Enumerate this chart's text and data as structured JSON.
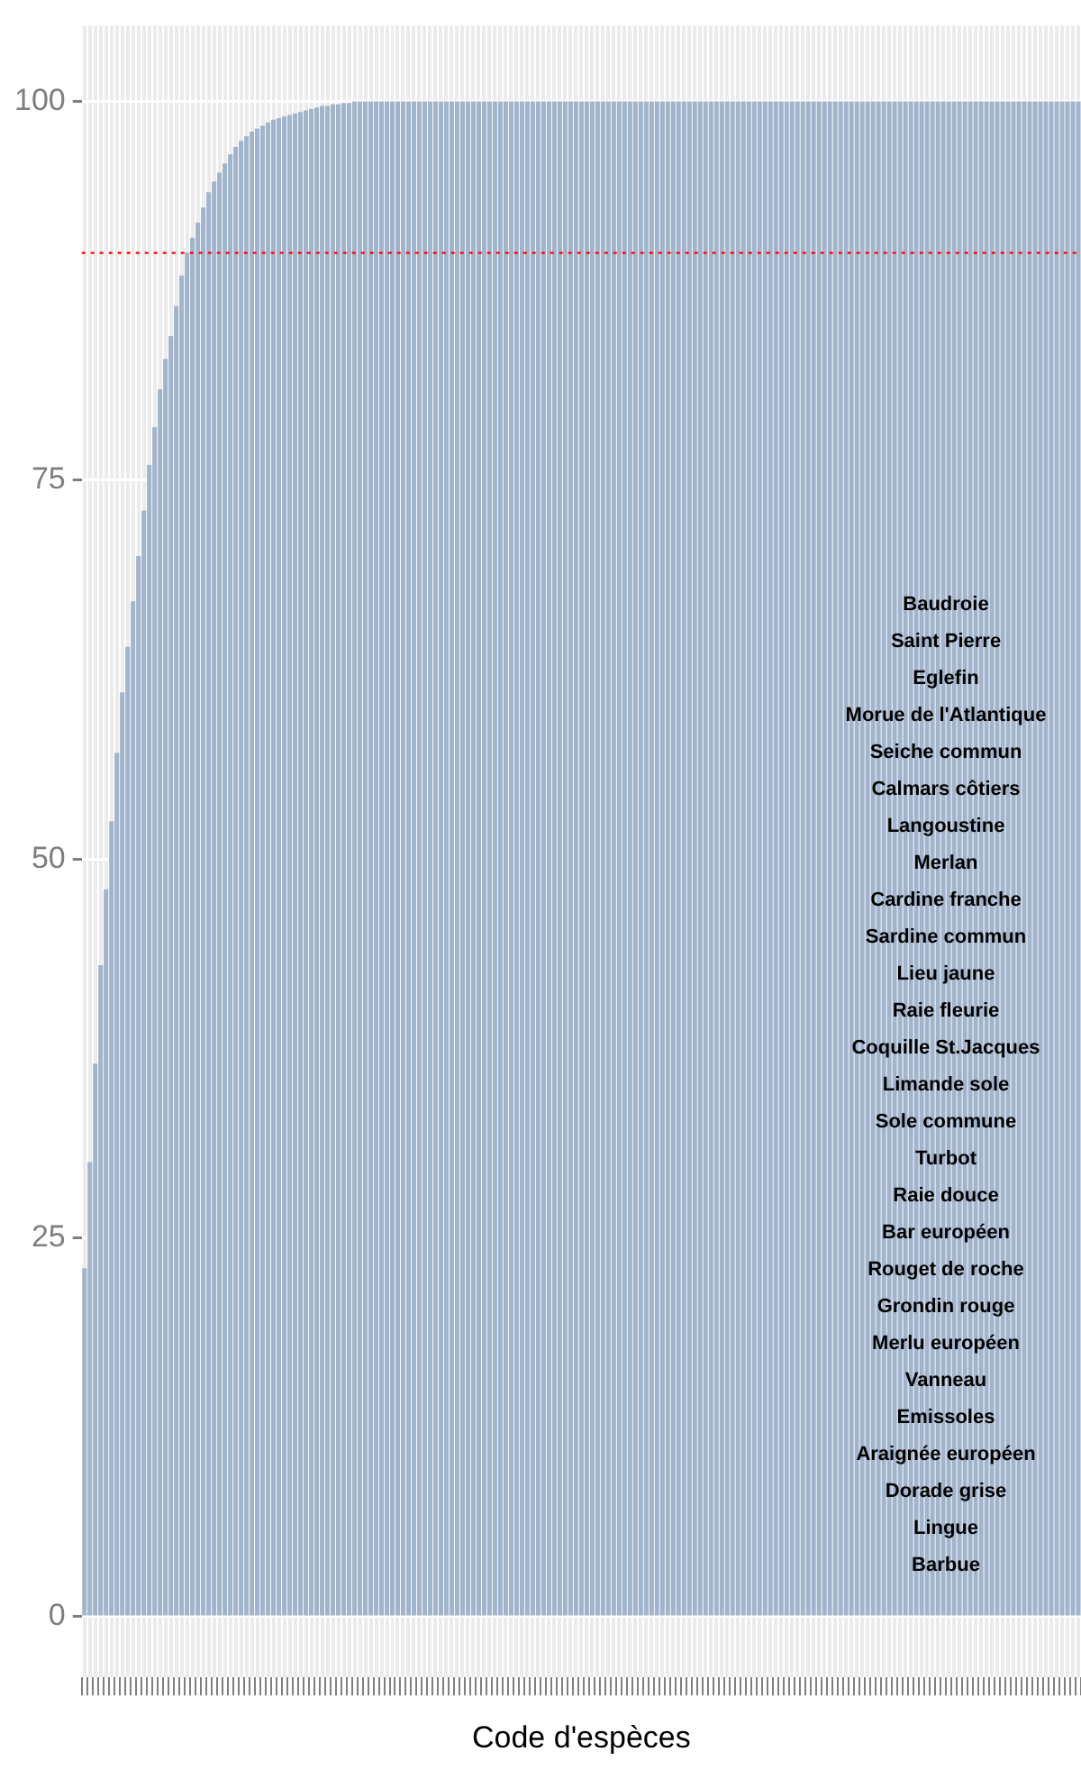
{
  "chart_data": {
    "type": "bar",
    "xlabel": "Code d'espèces",
    "categories": [
      null,
      null,
      null,
      null,
      null,
      null,
      null,
      null,
      null,
      null,
      null,
      null,
      null,
      null,
      null,
      null,
      null,
      null,
      null,
      null,
      null,
      null,
      null,
      null,
      null,
      null,
      null,
      null,
      null,
      null,
      null,
      null,
      null,
      null,
      null,
      null,
      null,
      null,
      null,
      null,
      null,
      null,
      null,
      null,
      null,
      null,
      null,
      null,
      null,
      null,
      null,
      null,
      null,
      null,
      null,
      null,
      null,
      null,
      null,
      null,
      null,
      null,
      null,
      null,
      null,
      null,
      null,
      null,
      null,
      null,
      null,
      null,
      null,
      null,
      null,
      null,
      null,
      null,
      null,
      null,
      null,
      null,
      null,
      null,
      null,
      null,
      null,
      null,
      null,
      null,
      null,
      null,
      null,
      null,
      null,
      null,
      null,
      null,
      null,
      null,
      null,
      null,
      null,
      null,
      null,
      null,
      null,
      null,
      null,
      null,
      null,
      null,
      null,
      null,
      null,
      null,
      null,
      null,
      null,
      null,
      null,
      null,
      null,
      null,
      null,
      null,
      null,
      null,
      null,
      null,
      null,
      null,
      null,
      null,
      null,
      null,
      null,
      null,
      null,
      null,
      null,
      null,
      null,
      null,
      null,
      null,
      null,
      null,
      null,
      null,
      null,
      null,
      null,
      null,
      null,
      null,
      null,
      null,
      null,
      null,
      null,
      null,
      null,
      null,
      null,
      null,
      null,
      null,
      null,
      null,
      null,
      null,
      null,
      null,
      null,
      null,
      null,
      null,
      null,
      null,
      null,
      null,
      null,
      null,
      null
    ],
    "values": [
      23,
      30,
      36.5,
      43,
      48,
      52.5,
      57,
      61,
      64,
      67,
      70,
      73,
      76,
      78.5,
      81,
      83,
      84.5,
      86.5,
      88.5,
      90,
      91,
      92,
      93,
      94,
      94.7,
      95.3,
      95.9,
      96.5,
      97,
      97.4,
      97.7,
      98,
      98.2,
      98.4,
      98.6,
      98.8,
      98.9,
      99,
      99.1,
      99.2,
      99.3,
      99.4,
      99.5,
      99.6,
      99.7,
      99.7,
      99.8,
      99.8,
      99.9,
      99.9,
      100,
      100,
      100,
      100,
      100,
      100,
      100,
      100,
      100,
      100,
      100,
      100,
      100,
      100,
      100,
      100,
      100,
      100,
      100,
      100,
      100,
      100,
      100,
      100,
      100,
      100,
      100,
      100,
      100,
      100,
      100,
      100,
      100,
      100,
      100,
      100,
      100,
      100,
      100,
      100,
      100,
      100,
      100,
      100,
      100,
      100,
      100,
      100,
      100,
      100,
      100,
      100,
      100,
      100,
      100,
      100,
      100,
      100,
      100,
      100,
      100,
      100,
      100,
      100,
      100,
      100,
      100,
      100,
      100,
      100,
      100,
      100,
      100,
      100,
      100,
      100,
      100,
      100,
      100,
      100,
      100,
      100,
      100,
      100,
      100,
      100,
      100,
      100,
      100,
      100,
      100,
      100,
      100,
      100,
      100,
      100,
      100,
      100,
      100,
      100,
      100,
      100,
      100,
      100,
      100,
      100,
      100,
      100,
      100,
      100,
      100,
      100,
      100,
      100,
      100,
      100,
      100,
      100,
      100,
      100,
      100,
      100,
      100,
      100,
      100,
      100,
      100,
      100,
      100,
      100,
      100,
      100,
      100,
      100,
      100
    ],
    "color": "#a2b4cc",
    "ylim": [
      -4,
      105
    ],
    "yticks": [
      0,
      25,
      50,
      75,
      100
    ],
    "grid": true,
    "tick_labels": "y",
    "ref_lines": [
      {
        "axis": "y",
        "value": 90,
        "color": "#ff0000",
        "line_style": "dotted"
      }
    ],
    "annotations": [
      "Baudroie",
      "Saint Pierre",
      "Eglefin",
      "Morue de l'Atlantique",
      "Seiche commun",
      "Calmars côtiers",
      "Langoustine",
      "Merlan",
      "Cardine franche",
      "Sardine commun",
      "Lieu jaune",
      "Raie fleurie",
      "Coquille St.Jacques",
      "Limande sole",
      "Sole commune",
      "Turbot",
      "Raie douce",
      "Bar européen",
      "Rouget de roche",
      "Grondin rouge",
      "Merlu européen",
      "Vanneau",
      "Emissoles",
      "Araignée européen",
      "Dorade grise",
      "Lingue",
      "Barbue"
    ]
  }
}
